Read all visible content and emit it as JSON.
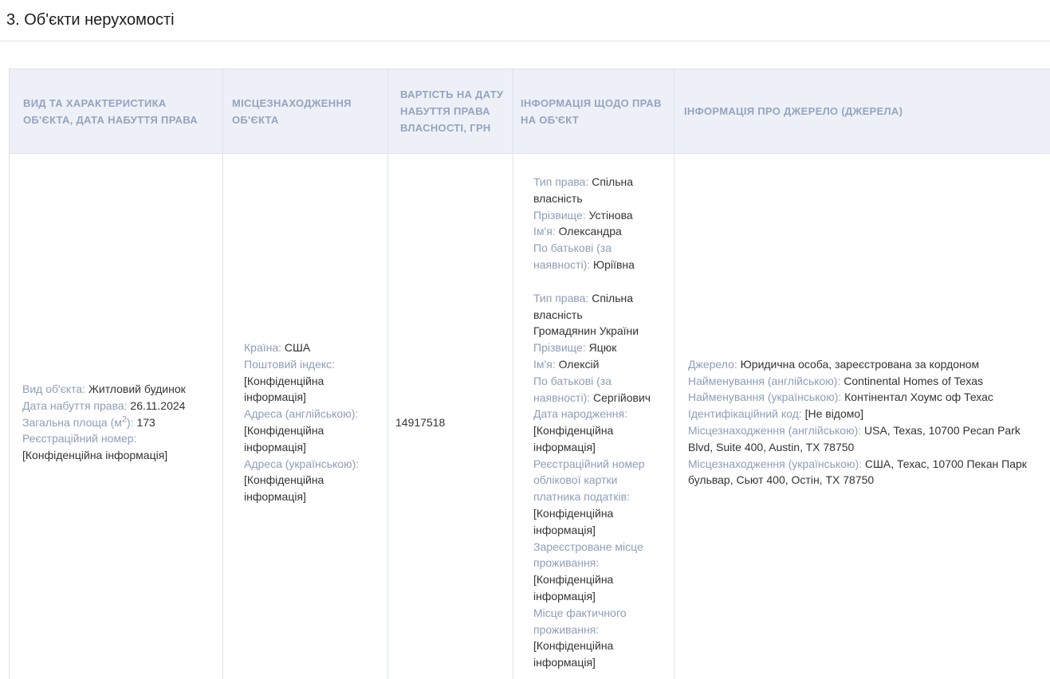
{
  "page": {
    "title": "3. Об'єкти нерухомості"
  },
  "colors": {
    "header_bg": "#edf1f7",
    "header_text": "#96a4bf",
    "label_text": "#8e9db9",
    "value_text": "#333333",
    "border": "#dde2e8",
    "divider": "#e4e4e4"
  },
  "table": {
    "headers": [
      "ВИД ТА ХАРАКТЕРИСТИКА ОБ'ЄКТА, ДАТА НАБУТТЯ ПРАВА",
      "МІСЦЕЗНАХОДЖЕННЯ ОБ'ЄКТА",
      "ВАРТІСТЬ НА ДАТУ НАБУТТЯ ПРАВА ВЛАСНОСТІ, ГРН",
      "ІНФОРМАЦІЯ ЩОДО ПРАВ НА ОБ'ЄКТ",
      "ІНФОРМАЦІЯ ПРО ДЖЕРЕЛО (ДЖЕРЕЛА)"
    ],
    "row": {
      "cells": [
        {
          "blocks": [
            [
              {
                "label": "Вид об'єкта:",
                "value": "Житловий будинок"
              },
              {
                "label": "Дата набуття права:",
                "value": "26.11.2024"
              },
              {
                "label": "Загальна площа (м",
                "sup": "2",
                "label_after": "):",
                "value": "173"
              },
              {
                "label": "Реєстраційний номер:",
                "value": "[Конфіденційна інформація]"
              }
            ]
          ]
        },
        {
          "blocks": [
            [
              {
                "label": "Країна:",
                "value": "США"
              },
              {
                "label": "Поштовий індекс:",
                "value": "[Конфіденційна інформація]"
              },
              {
                "label": "Адреса (англійською):",
                "value": "[Конфіденційна інформація]"
              },
              {
                "label": "Адреса (українською):",
                "value": "[Конфіденційна інформація]"
              }
            ]
          ]
        },
        {
          "text": "14917518"
        },
        {
          "blocks": [
            [
              {
                "label": "Тип права:",
                "value": "Спільна власність"
              },
              {
                "label": "Прізвище:",
                "value": "Устінова"
              },
              {
                "label": "Ім'я:",
                "value": "Олександра"
              },
              {
                "label": "По батькові (за наявності):",
                "value": "Юріївна"
              }
            ],
            [
              {
                "label": "Тип права:",
                "value": "Спільна власність"
              },
              {
                "value": "Громадянин України"
              },
              {
                "label": "Прізвище:",
                "value": "Яцюк"
              },
              {
                "label": "Ім'я:",
                "value": "Олексій"
              },
              {
                "label": "По батькові (за наявності):",
                "value": "Сергійович"
              },
              {
                "label": "Дата народження:",
                "value": "[Конфіденційна інформація]"
              },
              {
                "label": "Реєстраційний номер облікової картки платника податків:",
                "value": "[Конфіденційна інформація]"
              },
              {
                "label": "Зареєстроване місце проживання:",
                "value": "[Конфіденційна інформація]"
              },
              {
                "label": "Місце фактичного проживання:",
                "value": "[Конфіденційна інформація]"
              }
            ]
          ]
        },
        {
          "blocks": [
            [
              {
                "label": "Джерело:",
                "value": "Юридична особа, зареєстрована за кордоном"
              },
              {
                "label": "Найменування (англійською):",
                "value": "Continental Homes of Texas"
              },
              {
                "label": "Найменування (українською):",
                "value": "Контінентал Хоумс оф Техас"
              },
              {
                "label": "Ідентифікаційний код:",
                "value": "[Не відомо]"
              },
              {
                "label": "Місцезнаходження (англійською):",
                "value": "USA, Texas, 10700 Pecan Park Blvd, Suite 400, Austin, TX 78750"
              },
              {
                "label": "Місцезнаходження (українською):",
                "value": "США, Техас, 10700 Пекан Парк бульвар, Сьют 400, Остін, TX 78750"
              }
            ]
          ]
        }
      ]
    }
  }
}
